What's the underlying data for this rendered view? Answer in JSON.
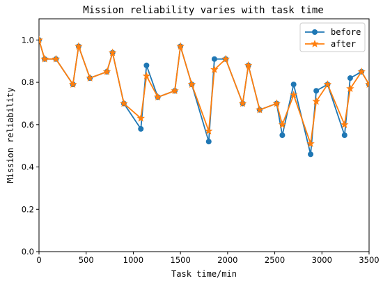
{
  "chart_data": {
    "type": "line",
    "title": "Mission reliability varies with task time",
    "xlabel": "Task time/min",
    "ylabel": "Mission reliability",
    "xlim": [
      0,
      3500
    ],
    "ylim": [
      0,
      1.1
    ],
    "xticks": [
      0,
      500,
      1000,
      1500,
      2000,
      2500,
      3000,
      3500
    ],
    "xtick_labels": [
      "0",
      "500",
      "1000",
      "1500",
      "2000",
      "2500",
      "3000",
      "3500"
    ],
    "yticks": [
      0.0,
      0.2,
      0.4,
      0.6,
      0.8,
      1.0
    ],
    "ytick_labels": [
      "0.0",
      "0.2",
      "0.4",
      "0.6",
      "0.8",
      "1.0"
    ],
    "grid": false,
    "legend_position": "top-right",
    "series": [
      {
        "name": "before",
        "color": "#1f77b4",
        "marker": "circle",
        "x": [
          0,
          60,
          180,
          360,
          420,
          540,
          720,
          780,
          900,
          1080,
          1140,
          1260,
          1440,
          1500,
          1620,
          1800,
          1860,
          1980,
          2160,
          2220,
          2340,
          2520,
          2580,
          2700,
          2880,
          2940,
          3060,
          3240,
          3300,
          3420,
          3500
        ],
        "y": [
          1.0,
          0.91,
          0.91,
          0.79,
          0.97,
          0.82,
          0.85,
          0.94,
          0.7,
          0.58,
          0.88,
          0.73,
          0.76,
          0.97,
          0.79,
          0.52,
          0.91,
          0.91,
          0.7,
          0.88,
          0.67,
          0.7,
          0.55,
          0.79,
          0.46,
          0.76,
          0.79,
          0.55,
          0.82,
          0.85,
          0.79
        ]
      },
      {
        "name": "after",
        "color": "#ff7f0e",
        "marker": "star",
        "x": [
          0,
          60,
          180,
          360,
          420,
          540,
          720,
          780,
          900,
          1080,
          1140,
          1260,
          1440,
          1500,
          1620,
          1800,
          1860,
          1980,
          2160,
          2220,
          2340,
          2520,
          2580,
          2700,
          2880,
          2940,
          3060,
          3240,
          3300,
          3420,
          3500
        ],
        "y": [
          1.0,
          0.91,
          0.91,
          0.79,
          0.97,
          0.82,
          0.85,
          0.94,
          0.7,
          0.63,
          0.83,
          0.73,
          0.76,
          0.97,
          0.79,
          0.57,
          0.86,
          0.91,
          0.7,
          0.88,
          0.67,
          0.7,
          0.6,
          0.74,
          0.51,
          0.71,
          0.79,
          0.6,
          0.77,
          0.85,
          0.79
        ]
      }
    ]
  }
}
